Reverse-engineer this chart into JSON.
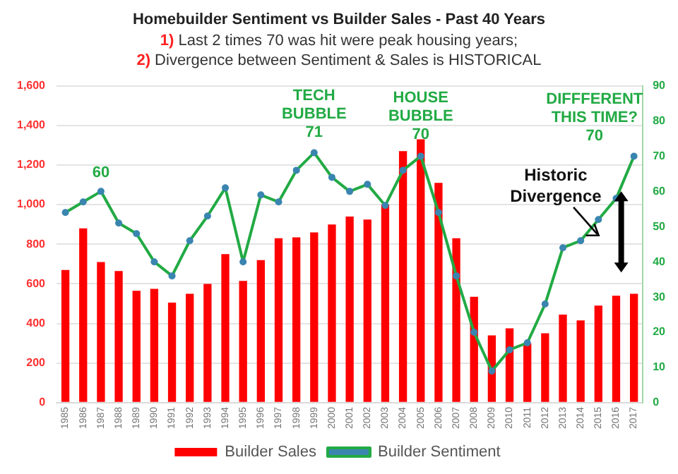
{
  "chart_data": {
    "type": "bar",
    "title": "Homebuilder Sentiment vs Builder Sales - Past 40 Years",
    "subtitle": "1) Last 2 times 70 was hit were peak housing years;\n2) Divergence between Sentiment & Sales is HISTORICAL",
    "categories": [
      "1985",
      "1986",
      "1987",
      "1988",
      "1989",
      "1990",
      "1991",
      "1992",
      "1993",
      "1994",
      "1995",
      "1996",
      "1997",
      "1998",
      "1999",
      "2000",
      "2001",
      "2002",
      "2003",
      "2004",
      "2005",
      "2006",
      "2007",
      "2008",
      "2009",
      "2010",
      "2011",
      "2012",
      "2013",
      "2014",
      "2015",
      "2016",
      "2017"
    ],
    "series": [
      {
        "name": "Builder Sales",
        "color": "#ff0000",
        "values": [
          670,
          880,
          710,
          665,
          565,
          575,
          505,
          550,
          600,
          750,
          615,
          720,
          830,
          835,
          860,
          900,
          940,
          925,
          1000,
          1270,
          1330,
          1110,
          830,
          535,
          340,
          375,
          300,
          350,
          445,
          415,
          490,
          540,
          550
        ]
      },
      {
        "name": "Builder Sentiment",
        "type": "line",
        "axis": "y2",
        "color": "#22aa44",
        "values": [
          54,
          57,
          60,
          51,
          48,
          40,
          36,
          46,
          53,
          61,
          40,
          59,
          57,
          66,
          71,
          64,
          60,
          62,
          56,
          66,
          70,
          54,
          36,
          20,
          9,
          15,
          17,
          28,
          44,
          46,
          52,
          58,
          70
        ]
      }
    ],
    "ylim": [
      0,
      1600
    ],
    "yticks": [
      0,
      200,
      400,
      600,
      800,
      {
        "value": 1000,
        "label": "1,000"
      },
      {
        "value": 1200,
        "label": "1,200"
      },
      {
        "value": 1400,
        "label": "1,400"
      },
      {
        "value": 1600,
        "label": "1,600"
      }
    ],
    "y2lim": [
      0,
      90
    ],
    "y2ticks": [
      0,
      10,
      20,
      30,
      40,
      50,
      60,
      70,
      80,
      90
    ],
    "grid": "y",
    "legend": "bottom",
    "marker": "circle",
    "annotations": [
      "60",
      "TECH\nBUBBLE\n71",
      "HOUSE\nBUBBLE\n70",
      "DIFFFERENT\nTHIS TIME?\n70",
      "Historic\nDivergence"
    ]
  }
}
